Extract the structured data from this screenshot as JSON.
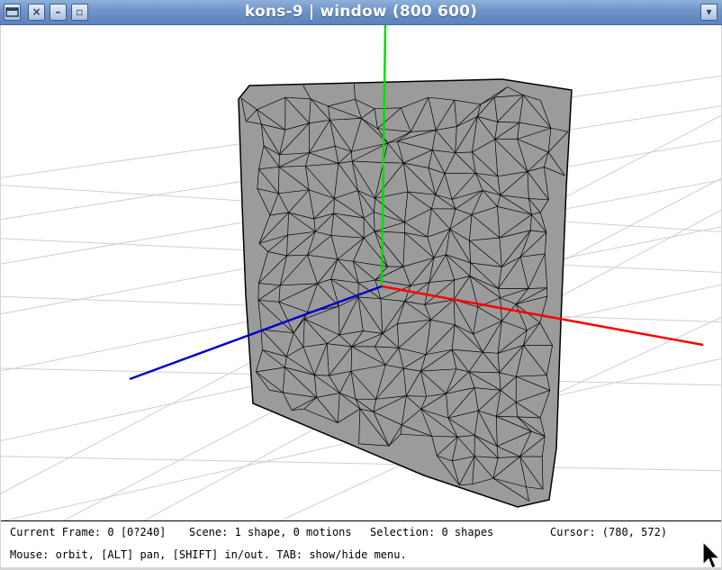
{
  "window": {
    "title": "kons-9 | window (800 600)",
    "buttons": [
      "menu",
      "close",
      "minimize",
      "maximize",
      "shade"
    ]
  },
  "status": {
    "current_frame": "Current Frame: 0 [0?240]",
    "scene": "Scene: 1 shape, 0 motions",
    "selection": "Selection: 0 shapes",
    "cursor": "Cursor: (780, 572)",
    "help": "Mouse: orbit, [ALT] pan, [SHIFT] in/out. TAB: show/hide menu."
  },
  "colors": {
    "x_axis": "#ff0000",
    "y_axis": "#00dd00",
    "z_axis": "#0000cc",
    "mesh_fill": "#9b9b9b",
    "mesh_edges": "#000000",
    "grid": "#cfcfcf"
  }
}
